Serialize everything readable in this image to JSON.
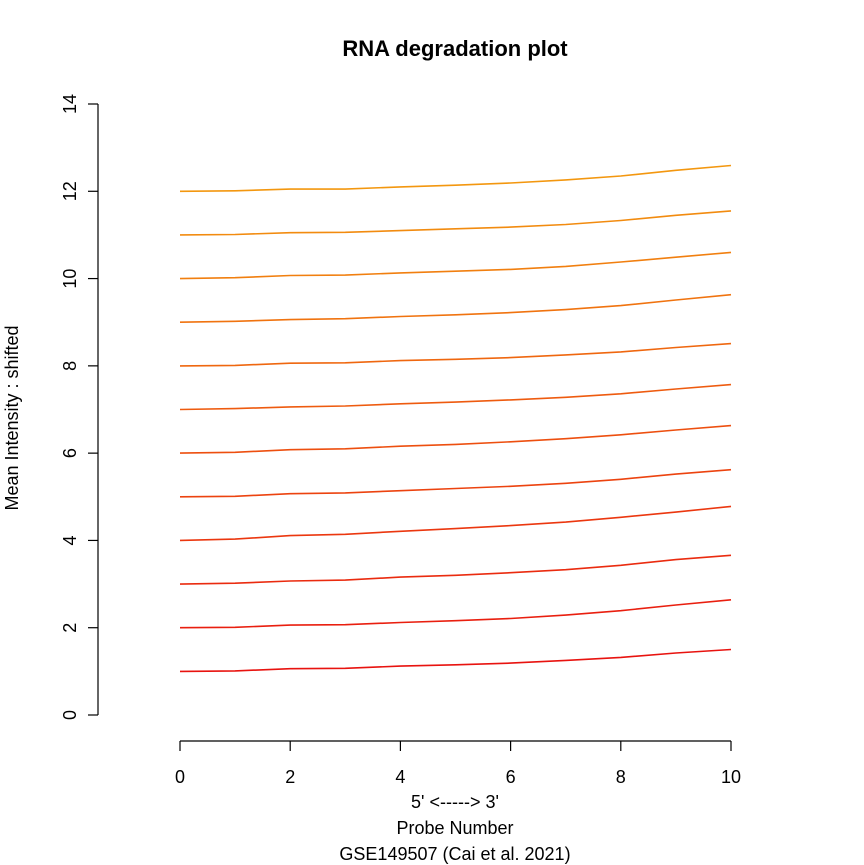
{
  "chart_data": {
    "type": "line",
    "title": "RNA degradation plot",
    "xlabel_lines": [
      "5' <-----> 3'",
      "Probe Number",
      "GSE149507 (Cai et al. 2021)"
    ],
    "ylabel": "Mean Intensity : shifted",
    "xlim": [
      0,
      10
    ],
    "ylim": [
      0,
      14
    ],
    "x_ticks": [
      0,
      2,
      4,
      6,
      8,
      10
    ],
    "y_ticks": [
      0,
      2,
      4,
      6,
      8,
      10,
      12,
      14
    ],
    "grid": false,
    "x": [
      0,
      1,
      2,
      3,
      4,
      5,
      6,
      7,
      8,
      9,
      10
    ],
    "series": [
      {
        "color": "#e8130f",
        "values": [
          1.0,
          1.01,
          1.06,
          1.07,
          1.12,
          1.15,
          1.19,
          1.25,
          1.32,
          1.42,
          1.5
        ]
      },
      {
        "color": "#e91f0f",
        "values": [
          2.0,
          2.01,
          2.06,
          2.07,
          2.12,
          2.16,
          2.21,
          2.29,
          2.39,
          2.52,
          2.64
        ]
      },
      {
        "color": "#ea2b0f",
        "values": [
          3.0,
          3.02,
          3.07,
          3.09,
          3.16,
          3.2,
          3.26,
          3.33,
          3.43,
          3.56,
          3.66
        ]
      },
      {
        "color": "#eb370f",
        "values": [
          4.0,
          4.03,
          4.11,
          4.14,
          4.21,
          4.27,
          4.34,
          4.42,
          4.53,
          4.65,
          4.78
        ]
      },
      {
        "color": "#ec430f",
        "values": [
          5.0,
          5.01,
          5.07,
          5.09,
          5.14,
          5.19,
          5.24,
          5.31,
          5.4,
          5.52,
          5.62
        ]
      },
      {
        "color": "#ed4f0f",
        "values": [
          6.0,
          6.02,
          6.08,
          6.1,
          6.16,
          6.2,
          6.26,
          6.33,
          6.42,
          6.53,
          6.63
        ]
      },
      {
        "color": "#ee5b0f",
        "values": [
          7.0,
          7.02,
          7.06,
          7.08,
          7.13,
          7.17,
          7.22,
          7.28,
          7.36,
          7.47,
          7.57
        ]
      },
      {
        "color": "#ef670f",
        "values": [
          8.0,
          8.01,
          8.06,
          8.07,
          8.12,
          8.15,
          8.19,
          8.25,
          8.32,
          8.42,
          8.51
        ]
      },
      {
        "color": "#f0730f",
        "values": [
          9.0,
          9.02,
          9.06,
          9.08,
          9.13,
          9.17,
          9.22,
          9.29,
          9.38,
          9.51,
          9.63
        ]
      },
      {
        "color": "#f17f0f",
        "values": [
          10.0,
          10.02,
          10.07,
          10.08,
          10.13,
          10.17,
          10.21,
          10.28,
          10.38,
          10.49,
          10.6
        ]
      },
      {
        "color": "#f28b0f",
        "values": [
          11.0,
          11.01,
          11.05,
          11.06,
          11.1,
          11.14,
          11.18,
          11.24,
          11.33,
          11.45,
          11.55
        ]
      },
      {
        "color": "#f3970f",
        "values": [
          12.0,
          12.01,
          12.05,
          12.05,
          12.1,
          12.14,
          12.19,
          12.26,
          12.35,
          12.48,
          12.59
        ]
      }
    ]
  }
}
